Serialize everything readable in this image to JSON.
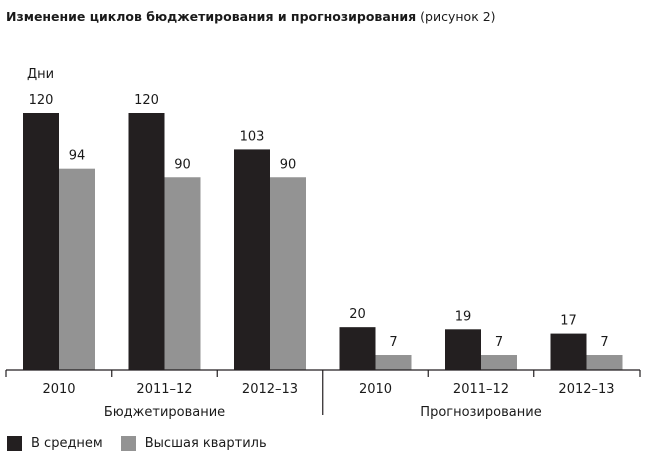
{
  "title": {
    "main": "Изменение циклов бюджетирования и прогнозирования",
    "sub": "(рисунок 2)"
  },
  "colors": {
    "average": "#231f20",
    "top_quartile": "#939393",
    "axis": "#231f20"
  },
  "chart_data": {
    "type": "bar",
    "title": "Изменение циклов бюджетирования и прогнозирования",
    "ylabel": "Дни",
    "ylim": [
      0,
      120
    ],
    "grid": false,
    "legend_position": "bottom-left",
    "groups": [
      "Бюджетирование",
      "Прогнозирование"
    ],
    "categories": [
      "2010",
      "2011–12",
      "2012–13",
      "2010",
      "2011–12",
      "2012–13"
    ],
    "series": [
      {
        "name": "В среднем",
        "values": [
          120,
          120,
          103,
          20,
          19,
          17
        ]
      },
      {
        "name": "Высшая квартиль",
        "values": [
          94,
          90,
          90,
          7,
          7,
          7
        ]
      }
    ]
  },
  "legend": {
    "items": [
      "В среднем",
      "Высшая квартиль"
    ]
  }
}
